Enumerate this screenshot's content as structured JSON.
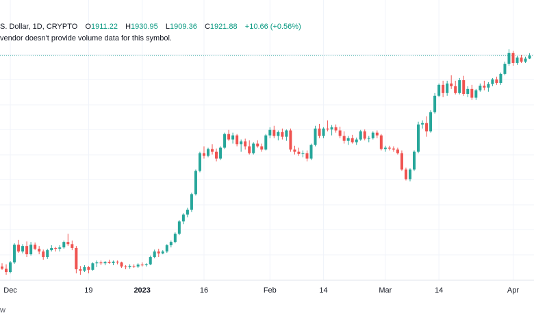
{
  "header": {
    "symbol": "S. Dollar, 1D, CRYPTO",
    "open_label": "O",
    "open": "1911.22",
    "high_label": "H",
    "high": "1930.95",
    "low_label": "L",
    "low": "1909.36",
    "close_label": "C",
    "close": "1921.88",
    "change": "+10.66 (+0.56%)"
  },
  "notice": "vendor doesn't provide volume data for this symbol.",
  "credit": "w",
  "colors": {
    "up": "#26a69a",
    "down": "#ef5350",
    "grid": "#f0f3fa",
    "price_line": "#26a69a"
  },
  "chart_data": {
    "type": "candlestick",
    "x_tick_labels": [
      {
        "label": "Dec",
        "index": 2
      },
      {
        "label": "19",
        "index": 21
      },
      {
        "label": "2023",
        "index": 34,
        "bold": true
      },
      {
        "label": "16",
        "index": 49
      },
      {
        "label": "Feb",
        "index": 65
      },
      {
        "label": "14",
        "index": 78
      },
      {
        "label": "Mar",
        "index": 93
      },
      {
        "label": "14",
        "index": 106
      },
      {
        "label": "Apr",
        "index": 124
      }
    ],
    "last_close_line": 1921.88,
    "ylim": [
      1100,
      1960
    ],
    "ohlc": [
      [
        1150,
        1162,
        1138,
        1142
      ],
      [
        1142,
        1158,
        1120,
        1130
      ],
      [
        1130,
        1170,
        1125,
        1165
      ],
      [
        1165,
        1235,
        1160,
        1230
      ],
      [
        1230,
        1248,
        1200,
        1205
      ],
      [
        1205,
        1232,
        1198,
        1225
      ],
      [
        1225,
        1242,
        1185,
        1195
      ],
      [
        1195,
        1240,
        1190,
        1230
      ],
      [
        1230,
        1238,
        1210,
        1215
      ],
      [
        1215,
        1225,
        1195,
        1205
      ],
      [
        1205,
        1212,
        1175,
        1185
      ],
      [
        1185,
        1215,
        1178,
        1210
      ],
      [
        1210,
        1228,
        1205,
        1218
      ],
      [
        1218,
        1222,
        1205,
        1215
      ],
      [
        1215,
        1228,
        1205,
        1220
      ],
      [
        1220,
        1245,
        1215,
        1240
      ],
      [
        1240,
        1270,
        1225,
        1232
      ],
      [
        1232,
        1245,
        1210,
        1218
      ],
      [
        1218,
        1225,
        1125,
        1140
      ],
      [
        1140,
        1152,
        1120,
        1135
      ],
      [
        1135,
        1155,
        1130,
        1148
      ],
      [
        1148,
        1152,
        1125,
        1138
      ],
      [
        1138,
        1165,
        1135,
        1162
      ],
      [
        1162,
        1172,
        1148,
        1165
      ],
      [
        1165,
        1172,
        1155,
        1162
      ],
      [
        1162,
        1170,
        1155,
        1167
      ],
      [
        1167,
        1175,
        1160,
        1163
      ],
      [
        1163,
        1172,
        1155,
        1168
      ],
      [
        1168,
        1172,
        1158,
        1165
      ],
      [
        1165,
        1168,
        1145,
        1150
      ],
      [
        1150,
        1155,
        1140,
        1148
      ],
      [
        1148,
        1158,
        1142,
        1152
      ],
      [
        1152,
        1158,
        1145,
        1150
      ],
      [
        1150,
        1162,
        1145,
        1157
      ],
      [
        1157,
        1165,
        1150,
        1155
      ],
      [
        1155,
        1162,
        1150,
        1158
      ],
      [
        1158,
        1190,
        1155,
        1185
      ],
      [
        1185,
        1212,
        1180,
        1205
      ],
      [
        1205,
        1215,
        1185,
        1198
      ],
      [
        1198,
        1210,
        1195,
        1205
      ],
      [
        1205,
        1232,
        1200,
        1228
      ],
      [
        1228,
        1245,
        1220,
        1240
      ],
      [
        1240,
        1275,
        1235,
        1270
      ],
      [
        1270,
        1320,
        1265,
        1315
      ],
      [
        1315,
        1345,
        1305,
        1340
      ],
      [
        1340,
        1365,
        1330,
        1358
      ],
      [
        1358,
        1420,
        1350,
        1415
      ],
      [
        1415,
        1505,
        1410,
        1500
      ],
      [
        1500,
        1570,
        1495,
        1565
      ],
      [
        1565,
        1590,
        1545,
        1555
      ],
      [
        1555,
        1585,
        1550,
        1580
      ],
      [
        1580,
        1598,
        1560,
        1570
      ],
      [
        1570,
        1582,
        1535,
        1545
      ],
      [
        1545,
        1590,
        1540,
        1585
      ],
      [
        1585,
        1640,
        1580,
        1635
      ],
      [
        1635,
        1650,
        1610,
        1615
      ],
      [
        1615,
        1640,
        1600,
        1630
      ],
      [
        1630,
        1635,
        1590,
        1598
      ],
      [
        1598,
        1615,
        1570,
        1608
      ],
      [
        1608,
        1618,
        1578,
        1590
      ],
      [
        1590,
        1612,
        1560,
        1565
      ],
      [
        1565,
        1605,
        1560,
        1600
      ],
      [
        1600,
        1612,
        1585,
        1590
      ],
      [
        1590,
        1600,
        1570,
        1578
      ],
      [
        1578,
        1635,
        1575,
        1630
      ],
      [
        1630,
        1660,
        1620,
        1650
      ],
      [
        1650,
        1665,
        1620,
        1628
      ],
      [
        1628,
        1648,
        1612,
        1642
      ],
      [
        1642,
        1655,
        1615,
        1625
      ],
      [
        1625,
        1652,
        1610,
        1648
      ],
      [
        1648,
        1655,
        1570,
        1578
      ],
      [
        1578,
        1592,
        1560,
        1570
      ],
      [
        1570,
        1585,
        1555,
        1562
      ],
      [
        1562,
        1575,
        1550,
        1565
      ],
      [
        1565,
        1575,
        1535,
        1545
      ],
      [
        1545,
        1600,
        1540,
        1595
      ],
      [
        1595,
        1665,
        1590,
        1655
      ],
      [
        1655,
        1672,
        1620,
        1628
      ],
      [
        1628,
        1660,
        1620,
        1655
      ],
      [
        1655,
        1685,
        1645,
        1652
      ],
      [
        1652,
        1668,
        1630,
        1660
      ],
      [
        1660,
        1670,
        1640,
        1648
      ],
      [
        1648,
        1662,
        1620,
        1628
      ],
      [
        1628,
        1645,
        1600,
        1610
      ],
      [
        1610,
        1628,
        1595,
        1620
      ],
      [
        1620,
        1632,
        1600,
        1605
      ],
      [
        1605,
        1622,
        1595,
        1615
      ],
      [
        1615,
        1650,
        1610,
        1645
      ],
      [
        1645,
        1652,
        1612,
        1618
      ],
      [
        1618,
        1628,
        1605,
        1620
      ],
      [
        1620,
        1645,
        1615,
        1640
      ],
      [
        1640,
        1648,
        1620,
        1630
      ],
      [
        1630,
        1635,
        1575,
        1580
      ],
      [
        1580,
        1592,
        1570,
        1585
      ],
      [
        1585,
        1592,
        1575,
        1582
      ],
      [
        1582,
        1590,
        1570,
        1578
      ],
      [
        1578,
        1585,
        1560,
        1565
      ],
      [
        1565,
        1575,
        1500,
        1505
      ],
      [
        1505,
        1512,
        1465,
        1470
      ],
      [
        1470,
        1510,
        1462,
        1505
      ],
      [
        1505,
        1575,
        1500,
        1570
      ],
      [
        1570,
        1680,
        1565,
        1670
      ],
      [
        1670,
        1685,
        1655,
        1675
      ],
      [
        1675,
        1700,
        1625,
        1645
      ],
      [
        1645,
        1722,
        1640,
        1715
      ],
      [
        1715,
        1785,
        1710,
        1775
      ],
      [
        1775,
        1820,
        1770,
        1815
      ],
      [
        1815,
        1830,
        1770,
        1785
      ],
      [
        1785,
        1830,
        1775,
        1820
      ],
      [
        1820,
        1850,
        1800,
        1810
      ],
      [
        1810,
        1830,
        1780,
        1785
      ],
      [
        1785,
        1840,
        1780,
        1832
      ],
      [
        1832,
        1848,
        1775,
        1782
      ],
      [
        1782,
        1810,
        1770,
        1800
      ],
      [
        1800,
        1815,
        1760,
        1768
      ],
      [
        1768,
        1800,
        1760,
        1795
      ],
      [
        1795,
        1820,
        1790,
        1812
      ],
      [
        1812,
        1830,
        1795,
        1805
      ],
      [
        1805,
        1825,
        1790,
        1818
      ],
      [
        1818,
        1840,
        1810,
        1835
      ],
      [
        1835,
        1845,
        1815,
        1822
      ],
      [
        1822,
        1860,
        1815,
        1855
      ],
      [
        1855,
        1900,
        1850,
        1892
      ],
      [
        1892,
        1945,
        1885,
        1932
      ],
      [
        1932,
        1940,
        1885,
        1895
      ],
      [
        1895,
        1920,
        1888,
        1915
      ],
      [
        1915,
        1925,
        1895,
        1900
      ],
      [
        1900,
        1918,
        1895,
        1911
      ],
      [
        1911.22,
        1930.95,
        1909.36,
        1921.88
      ]
    ]
  }
}
